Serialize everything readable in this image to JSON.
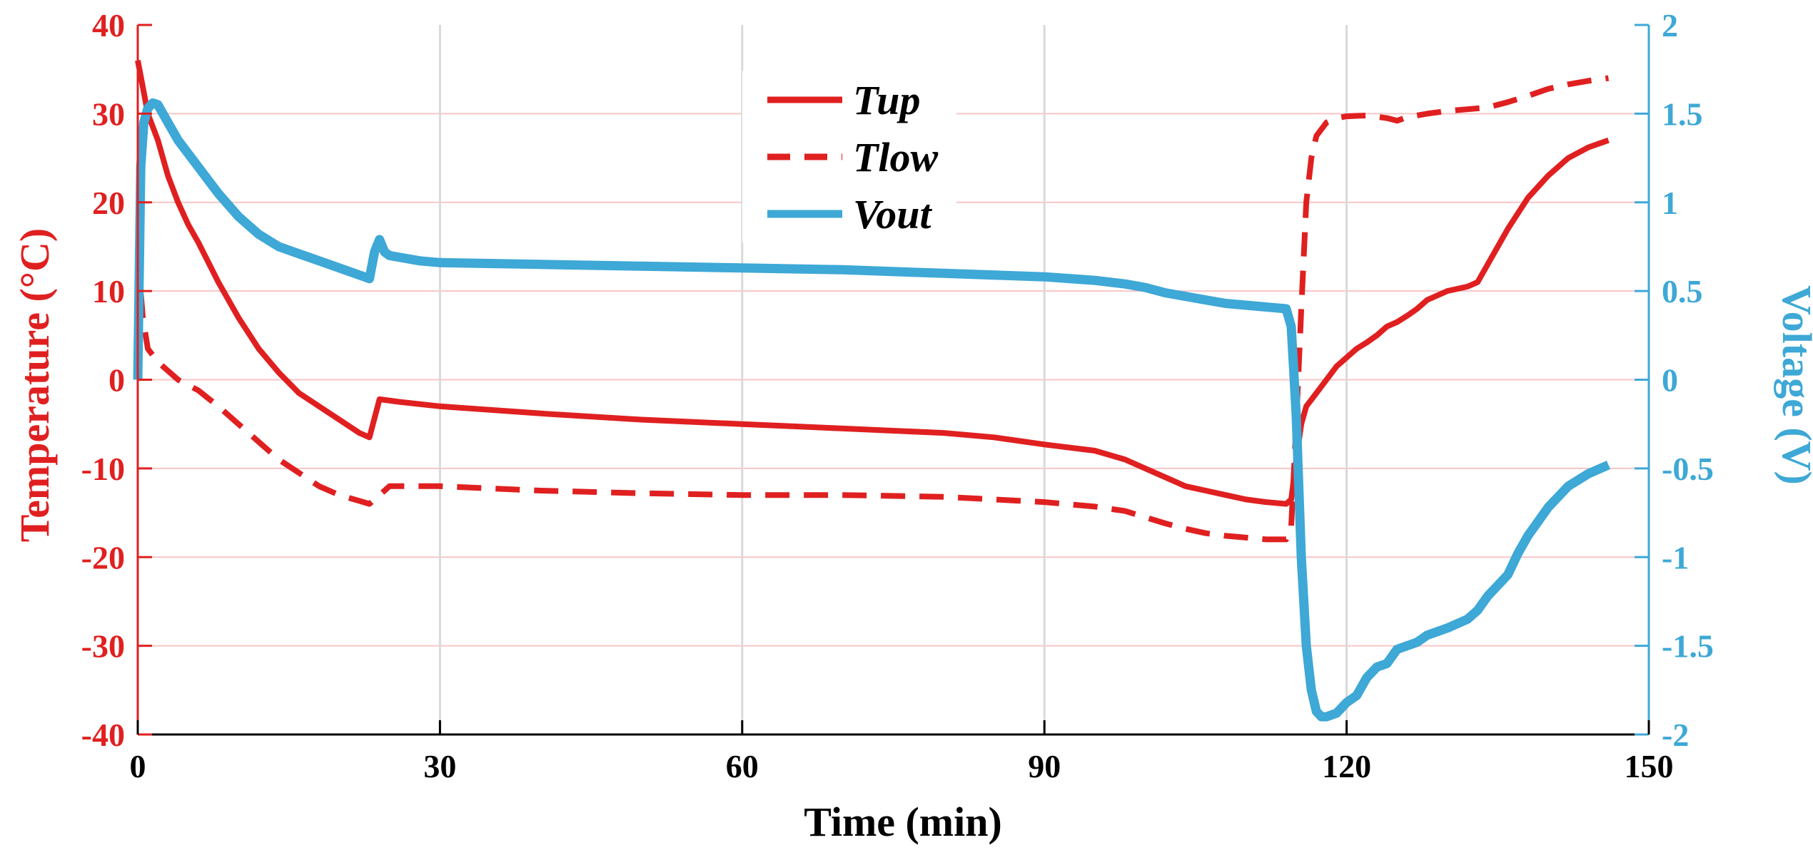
{
  "chart_data": {
    "type": "line",
    "xlabel": "Time (min)",
    "ylabel_left": "Temperature (°C)",
    "ylabel_right": "Voltage (V)",
    "xlim": [
      0,
      150
    ],
    "ylim_left": [
      -40,
      40
    ],
    "ylim_right": [
      -2,
      2
    ],
    "x_ticks": [
      0,
      30,
      60,
      90,
      120,
      150
    ],
    "x_tick_labels": [
      "0",
      "30",
      "60",
      "90",
      "120",
      "150"
    ],
    "y_left_ticks": [
      40,
      30,
      20,
      10,
      0,
      -10,
      -20,
      -30,
      -40
    ],
    "y_left_tick_labels": [
      "40",
      "30",
      "20",
      "10",
      "0",
      "-10",
      "-20",
      "-30",
      "-40"
    ],
    "y_right_ticks": [
      2,
      1.5,
      1,
      0.5,
      0,
      -0.5,
      -1,
      -1.5,
      -2
    ],
    "y_right_tick_labels": [
      "2",
      "1.5",
      "1",
      "0.5",
      "0",
      "-0.5",
      "-1",
      "-1.5",
      "-2"
    ],
    "grid": true,
    "legend_position": "top-center",
    "colors": {
      "temperature": "#e02020",
      "voltage": "#3ea8d6",
      "gridline": "#d9d9d9",
      "grid_red": "#f7c6c6"
    },
    "series": [
      {
        "name": "Tup",
        "axis": "left",
        "style": "solid",
        "color": "#e02020",
        "x": [
          0,
          0.5,
          1,
          2,
          3,
          4,
          5,
          6,
          8,
          10,
          12,
          14,
          16,
          18,
          20,
          22,
          23,
          24,
          26,
          30,
          40,
          50,
          60,
          70,
          80,
          85,
          90,
          95,
          98,
          100,
          102,
          104,
          106,
          108,
          110,
          112,
          114,
          114.5,
          115,
          115.5,
          116,
          117,
          118,
          119,
          120,
          121,
          122,
          123,
          124,
          125,
          126,
          127,
          128,
          130,
          132,
          133,
          134,
          136,
          138,
          140,
          142,
          144,
          146
        ],
        "y": [
          36,
          33,
          30,
          27,
          23,
          20,
          17.5,
          15.5,
          11,
          7,
          3.5,
          0.8,
          -1.5,
          -3,
          -4.5,
          -6,
          -6.5,
          -2.2,
          -2.5,
          -3,
          -3.8,
          -4.5,
          -5,
          -5.5,
          -6,
          -6.5,
          -7.3,
          -8,
          -9,
          -10,
          -11,
          -12,
          -12.5,
          -13,
          -13.5,
          -13.8,
          -14,
          -13.5,
          -9,
          -5,
          -3,
          -1.5,
          0,
          1.5,
          2.5,
          3.5,
          4.2,
          5,
          6,
          6.5,
          7.2,
          8,
          9,
          10,
          10.5,
          11,
          13,
          17,
          20.5,
          23,
          25,
          26.2,
          27
        ]
      },
      {
        "name": "Tlow",
        "axis": "left",
        "style": "dashed",
        "color": "#e02020",
        "x": [
          0,
          0.5,
          1,
          2,
          4,
          6,
          8,
          10,
          12,
          14,
          16,
          18,
          20,
          23,
          25,
          30,
          40,
          50,
          60,
          70,
          80,
          90,
          95,
          98,
          100,
          102,
          104,
          106,
          108,
          110,
          112,
          114,
          114.5,
          115,
          115.5,
          116,
          116.5,
          117,
          118,
          119,
          120,
          122,
          124,
          125,
          126,
          128,
          130,
          132,
          134,
          136,
          138,
          140,
          142,
          144,
          146
        ],
        "y": [
          14,
          7,
          3.5,
          2,
          0,
          -1.2,
          -3,
          -5,
          -7,
          -9,
          -10.5,
          -12,
          -13,
          -14,
          -12,
          -12,
          -12.5,
          -12.8,
          -13,
          -13,
          -13.2,
          -13.8,
          -14.3,
          -14.8,
          -15.5,
          -16.2,
          -16.8,
          -17.3,
          -17.6,
          -17.8,
          -18,
          -18,
          -16.5,
          -5,
          8,
          20,
          25,
          27.5,
          29,
          29.5,
          29.7,
          29.8,
          29.5,
          29.2,
          29.6,
          30,
          30.3,
          30.5,
          30.7,
          31.3,
          32,
          32.8,
          33.3,
          33.7,
          34
        ]
      },
      {
        "name": "Vout",
        "axis": "right",
        "style": "solid",
        "color": "#3ea8d6",
        "x": [
          0,
          0.3,
          0.6,
          1,
          1.5,
          2,
          3,
          4,
          6,
          8,
          10,
          12,
          14,
          16,
          18,
          20,
          22,
          23,
          23.5,
          24,
          24.5,
          25,
          26,
          28,
          30,
          40,
          50,
          60,
          70,
          80,
          90,
          95,
          98,
          100,
          102,
          104,
          106,
          108,
          110,
          112,
          114,
          114.5,
          115,
          115.5,
          116,
          116.5,
          117,
          117.5,
          118,
          119,
          120,
          121,
          122,
          123,
          124,
          125,
          126,
          127,
          128,
          130,
          132,
          133,
          134,
          136,
          137,
          138,
          139,
          140,
          141,
          142,
          144,
          146
        ],
        "y": [
          0,
          1.2,
          1.45,
          1.53,
          1.56,
          1.55,
          1.45,
          1.35,
          1.2,
          1.05,
          0.92,
          0.82,
          0.75,
          0.71,
          0.67,
          0.63,
          0.59,
          0.57,
          0.72,
          0.79,
          0.72,
          0.7,
          0.69,
          0.67,
          0.66,
          0.65,
          0.64,
          0.63,
          0.62,
          0.6,
          0.58,
          0.56,
          0.54,
          0.52,
          0.49,
          0.47,
          0.45,
          0.43,
          0.42,
          0.41,
          0.4,
          0.3,
          -0.2,
          -1,
          -1.5,
          -1.75,
          -1.87,
          -1.9,
          -1.9,
          -1.88,
          -1.82,
          -1.78,
          -1.68,
          -1.62,
          -1.6,
          -1.52,
          -1.5,
          -1.48,
          -1.44,
          -1.4,
          -1.35,
          -1.3,
          -1.22,
          -1.1,
          -0.98,
          -0.88,
          -0.8,
          -0.72,
          -0.66,
          -0.6,
          -0.53,
          -0.48
        ]
      }
    ]
  }
}
